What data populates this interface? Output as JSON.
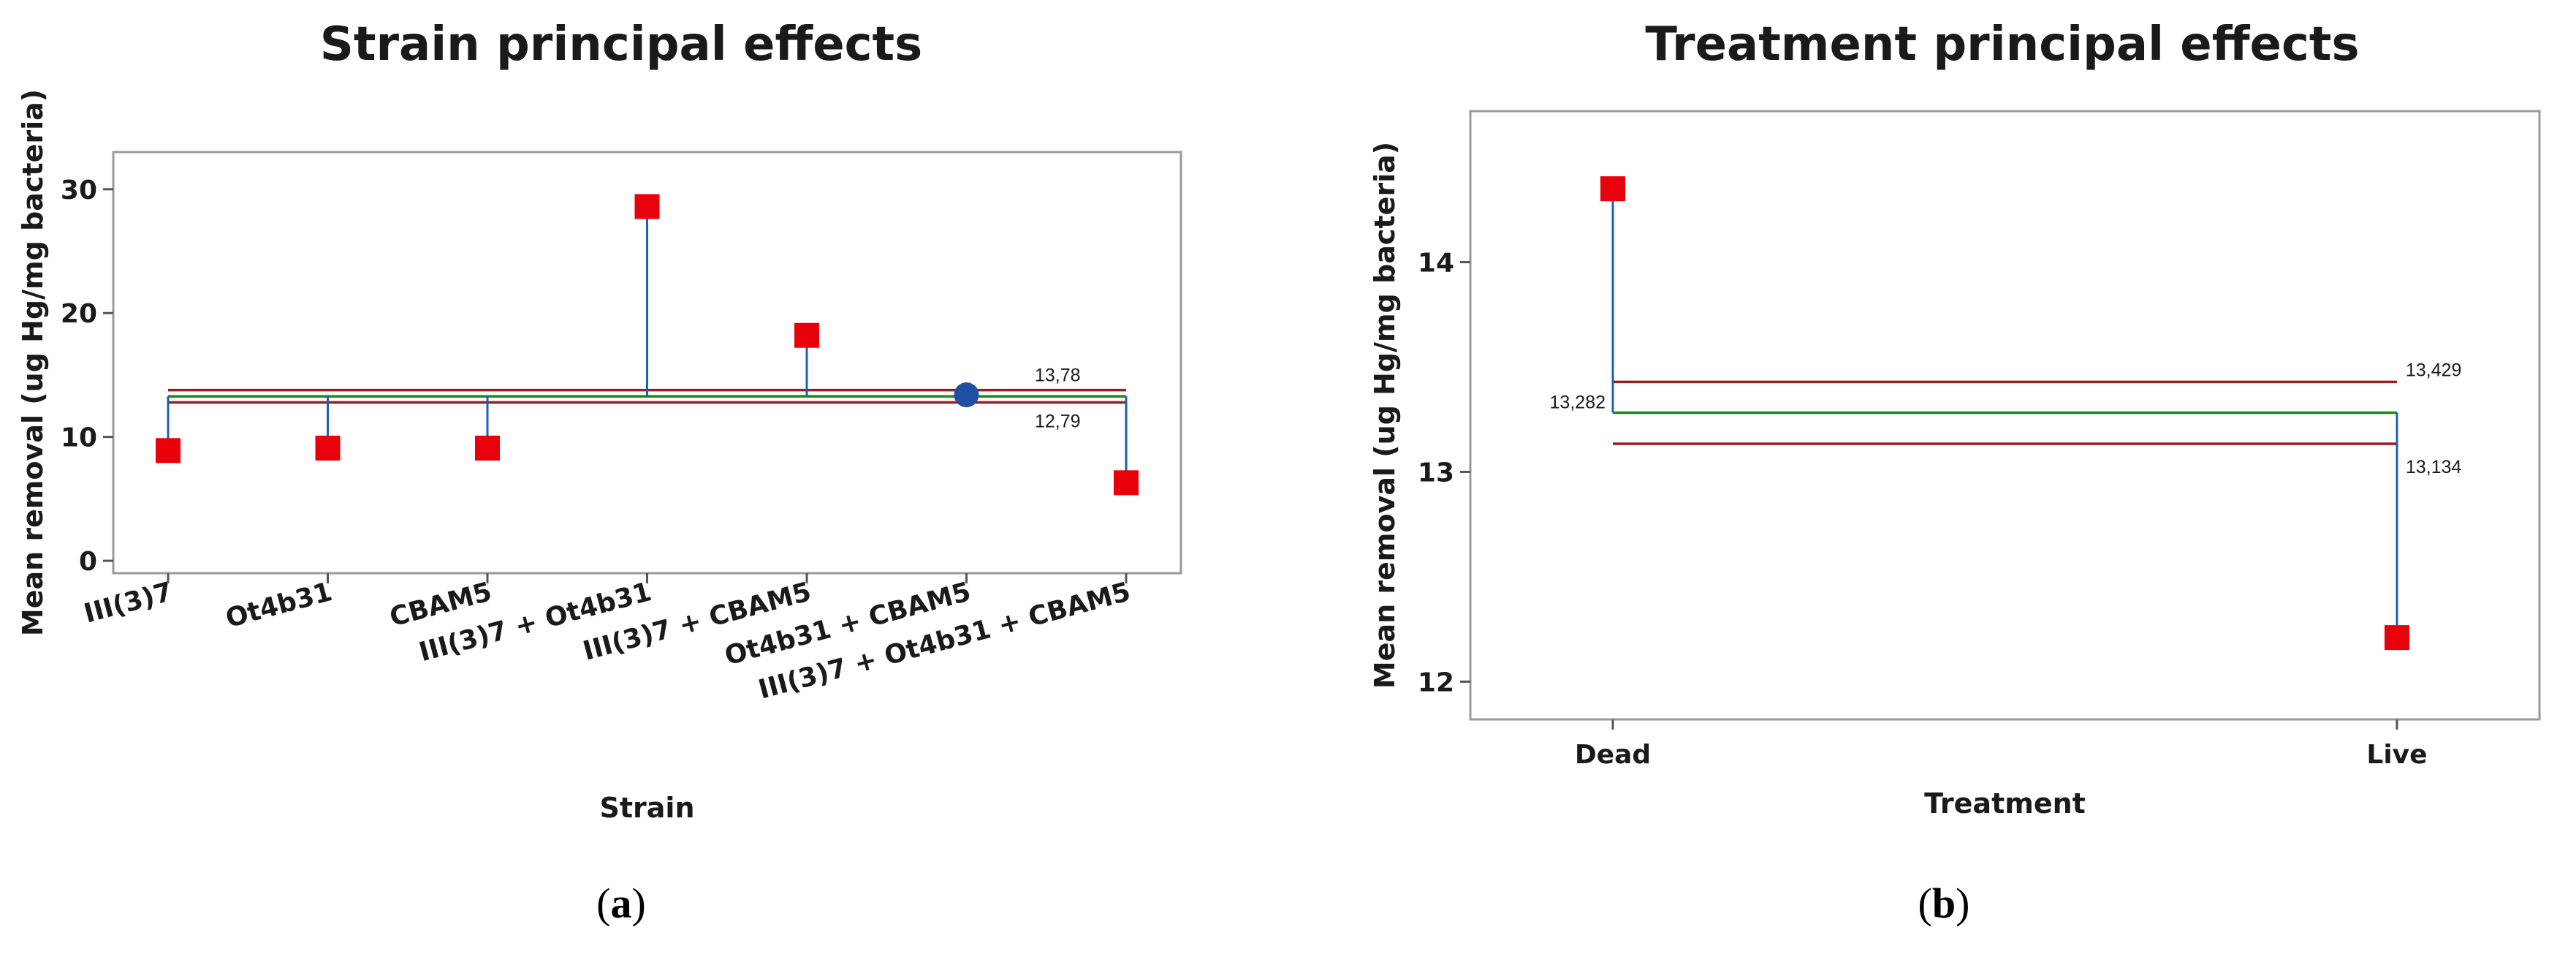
{
  "colors": {
    "point_red": "#e8000b",
    "point_blue": "#1f4fa3",
    "stem": "#1f5fb4",
    "limit_red": "#9e1b1b",
    "center_green": "#1a8a1a",
    "frame": "#9a9a9a",
    "plot_bg": "#ffffff"
  },
  "chart_data": [
    {
      "type": "scatter",
      "title": "Strain principal effects",
      "xlabel": "Strain",
      "ylabel": "Mean removal (ug Hg/mg bacteria)",
      "categories": [
        "III(3)7",
        "Ot4b31",
        "CBAM5",
        "III(3)7 + Ot4b31",
        "III(3)7 + CBAM5",
        "Ot4b31 + CBAM5",
        "III(3)7  + Ot4b31 + CBAM5"
      ],
      "values": [
        8.9,
        9.1,
        9.1,
        28.6,
        18.2,
        13.4,
        6.3
      ],
      "markers": [
        "square",
        "square",
        "square",
        "square",
        "square",
        "circle",
        "square"
      ],
      "center_line": 13.28,
      "upper_limit": 13.78,
      "lower_limit": 12.79,
      "upper_label": "13,78",
      "lower_label": "12,79",
      "ylim": [
        -1,
        33
      ],
      "yticks": [
        0,
        10,
        20,
        30
      ],
      "caption_open": "(",
      "caption_letter": "a",
      "caption_close": ")"
    },
    {
      "type": "scatter",
      "title": "Treatment principal effects",
      "xlabel": "Treatment",
      "ylabel": "Mean removal (ug Hg/mg bacteria)",
      "categories": [
        "Dead",
        "Live"
      ],
      "values": [
        14.35,
        12.21
      ],
      "markers": [
        "square",
        "square"
      ],
      "center_line": 13.282,
      "upper_limit": 13.429,
      "lower_limit": 13.134,
      "center_label": "13,282",
      "upper_label": "13,429",
      "lower_label": "13,134",
      "ylim": [
        11.82,
        14.72
      ],
      "yticks": [
        12,
        13,
        14
      ],
      "caption_open": "(",
      "caption_letter": "b",
      "caption_close": ")"
    }
  ]
}
